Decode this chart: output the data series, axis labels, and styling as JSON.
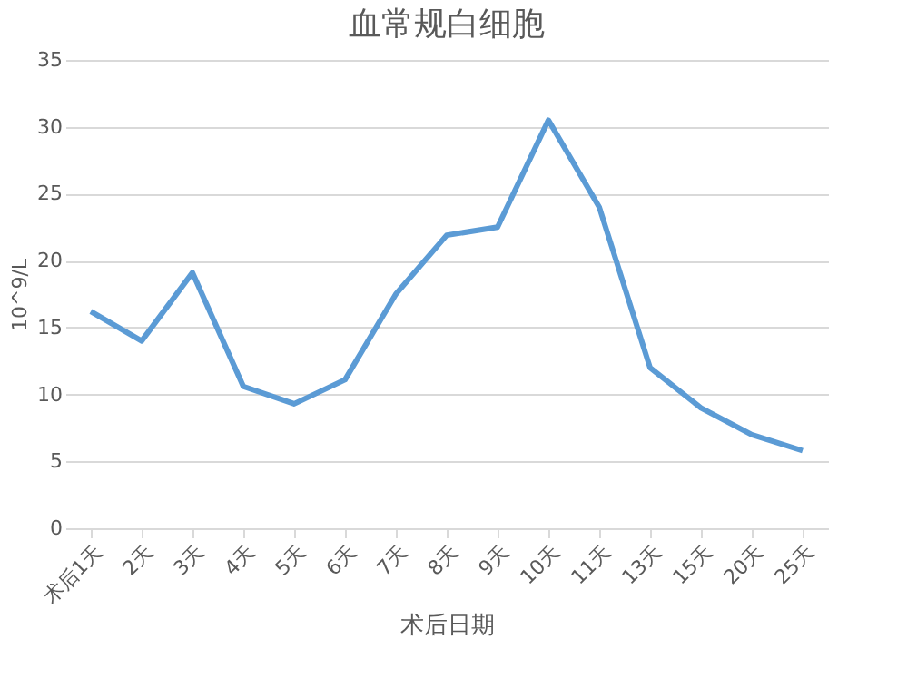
{
  "chart_data": {
    "type": "line",
    "title": "血常规白细胞",
    "xlabel": "术后日期",
    "ylabel": "10^9/L",
    "categories": [
      "术后1天",
      "2天",
      "3天",
      "4天",
      "5天",
      "6天",
      "7天",
      "8天",
      "9天",
      "10天",
      "11天",
      "13天",
      "15天",
      "20天",
      "25天"
    ],
    "series": [
      {
        "color": "#5b9bd5",
        "values": [
          16.2,
          14,
          19.1,
          10.6,
          9.3,
          11.1,
          17.5,
          21.9,
          22.5,
          30.5,
          24,
          12,
          9,
          7,
          5.8
        ]
      }
    ],
    "ylim": [
      0,
      35
    ],
    "yticks": [
      0,
      5,
      10,
      15,
      20,
      25,
      30,
      35
    ],
    "grid": "y",
    "marker": "none",
    "line_style": "solid"
  }
}
